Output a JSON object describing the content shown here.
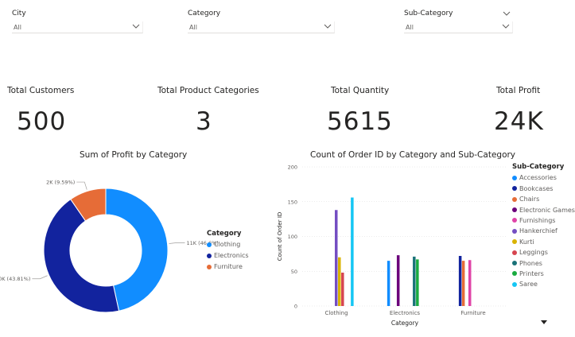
{
  "slicers": [
    {
      "label": "City",
      "value": "All"
    },
    {
      "label": "Category",
      "value": "All"
    },
    {
      "label": "Sub-Category",
      "value": "All"
    }
  ],
  "cards": [
    {
      "title": "Total Customers",
      "value": "500"
    },
    {
      "title": "Total Product Categories",
      "value": "3"
    },
    {
      "title": "Total Quantity",
      "value": "5615"
    },
    {
      "title": "Total Profit",
      "value": "24K"
    }
  ],
  "donut": {
    "title": "Sum of Profit by Category",
    "legend_title": "Category",
    "slices": [
      {
        "name": "Clothing",
        "label": "11K (46.6%)",
        "value": 46.6,
        "color": "#118dff"
      },
      {
        "name": "Electronics",
        "label": "10K (43.81%)",
        "value": 43.81,
        "color": "#12239e"
      },
      {
        "name": "Furniture",
        "label": "2K (9.59%)",
        "value": 9.59,
        "color": "#e66c37"
      }
    ]
  },
  "chart_data": {
    "type": "bar",
    "title": "Count of Order ID by Category and Sub-Category",
    "xlabel": "Category",
    "ylabel": "Count of Order ID",
    "ylim": [
      0,
      200
    ],
    "yticks": [
      0,
      50,
      100,
      150,
      200
    ],
    "legend_title": "Sub-Category",
    "categories": [
      "Clothing",
      "Electronics",
      "Furniture"
    ],
    "series": [
      {
        "name": "Accessories",
        "color": "#118dff",
        "values": [
          0,
          65,
          0
        ]
      },
      {
        "name": "Bookcases",
        "color": "#12239e",
        "values": [
          0,
          0,
          72
        ]
      },
      {
        "name": "Chairs",
        "color": "#e66c37",
        "values": [
          0,
          0,
          65
        ]
      },
      {
        "name": "Electronic Games",
        "color": "#6b007b",
        "values": [
          0,
          73,
          0
        ]
      },
      {
        "name": "Furnishings",
        "color": "#e044a7",
        "values": [
          0,
          0,
          66
        ]
      },
      {
        "name": "Hankerchief",
        "color": "#744ec2",
        "values": [
          138,
          0,
          0
        ]
      },
      {
        "name": "Kurti",
        "color": "#d9b300",
        "values": [
          70,
          0,
          0
        ]
      },
      {
        "name": "Leggings",
        "color": "#d64550",
        "values": [
          48,
          0,
          0
        ]
      },
      {
        "name": "Phones",
        "color": "#197278",
        "values": [
          0,
          71,
          0
        ]
      },
      {
        "name": "Printers",
        "color": "#1aab40",
        "values": [
          0,
          67,
          0
        ]
      },
      {
        "name": "Saree",
        "color": "#15c6f4",
        "values": [
          156,
          0,
          0
        ]
      }
    ]
  }
}
